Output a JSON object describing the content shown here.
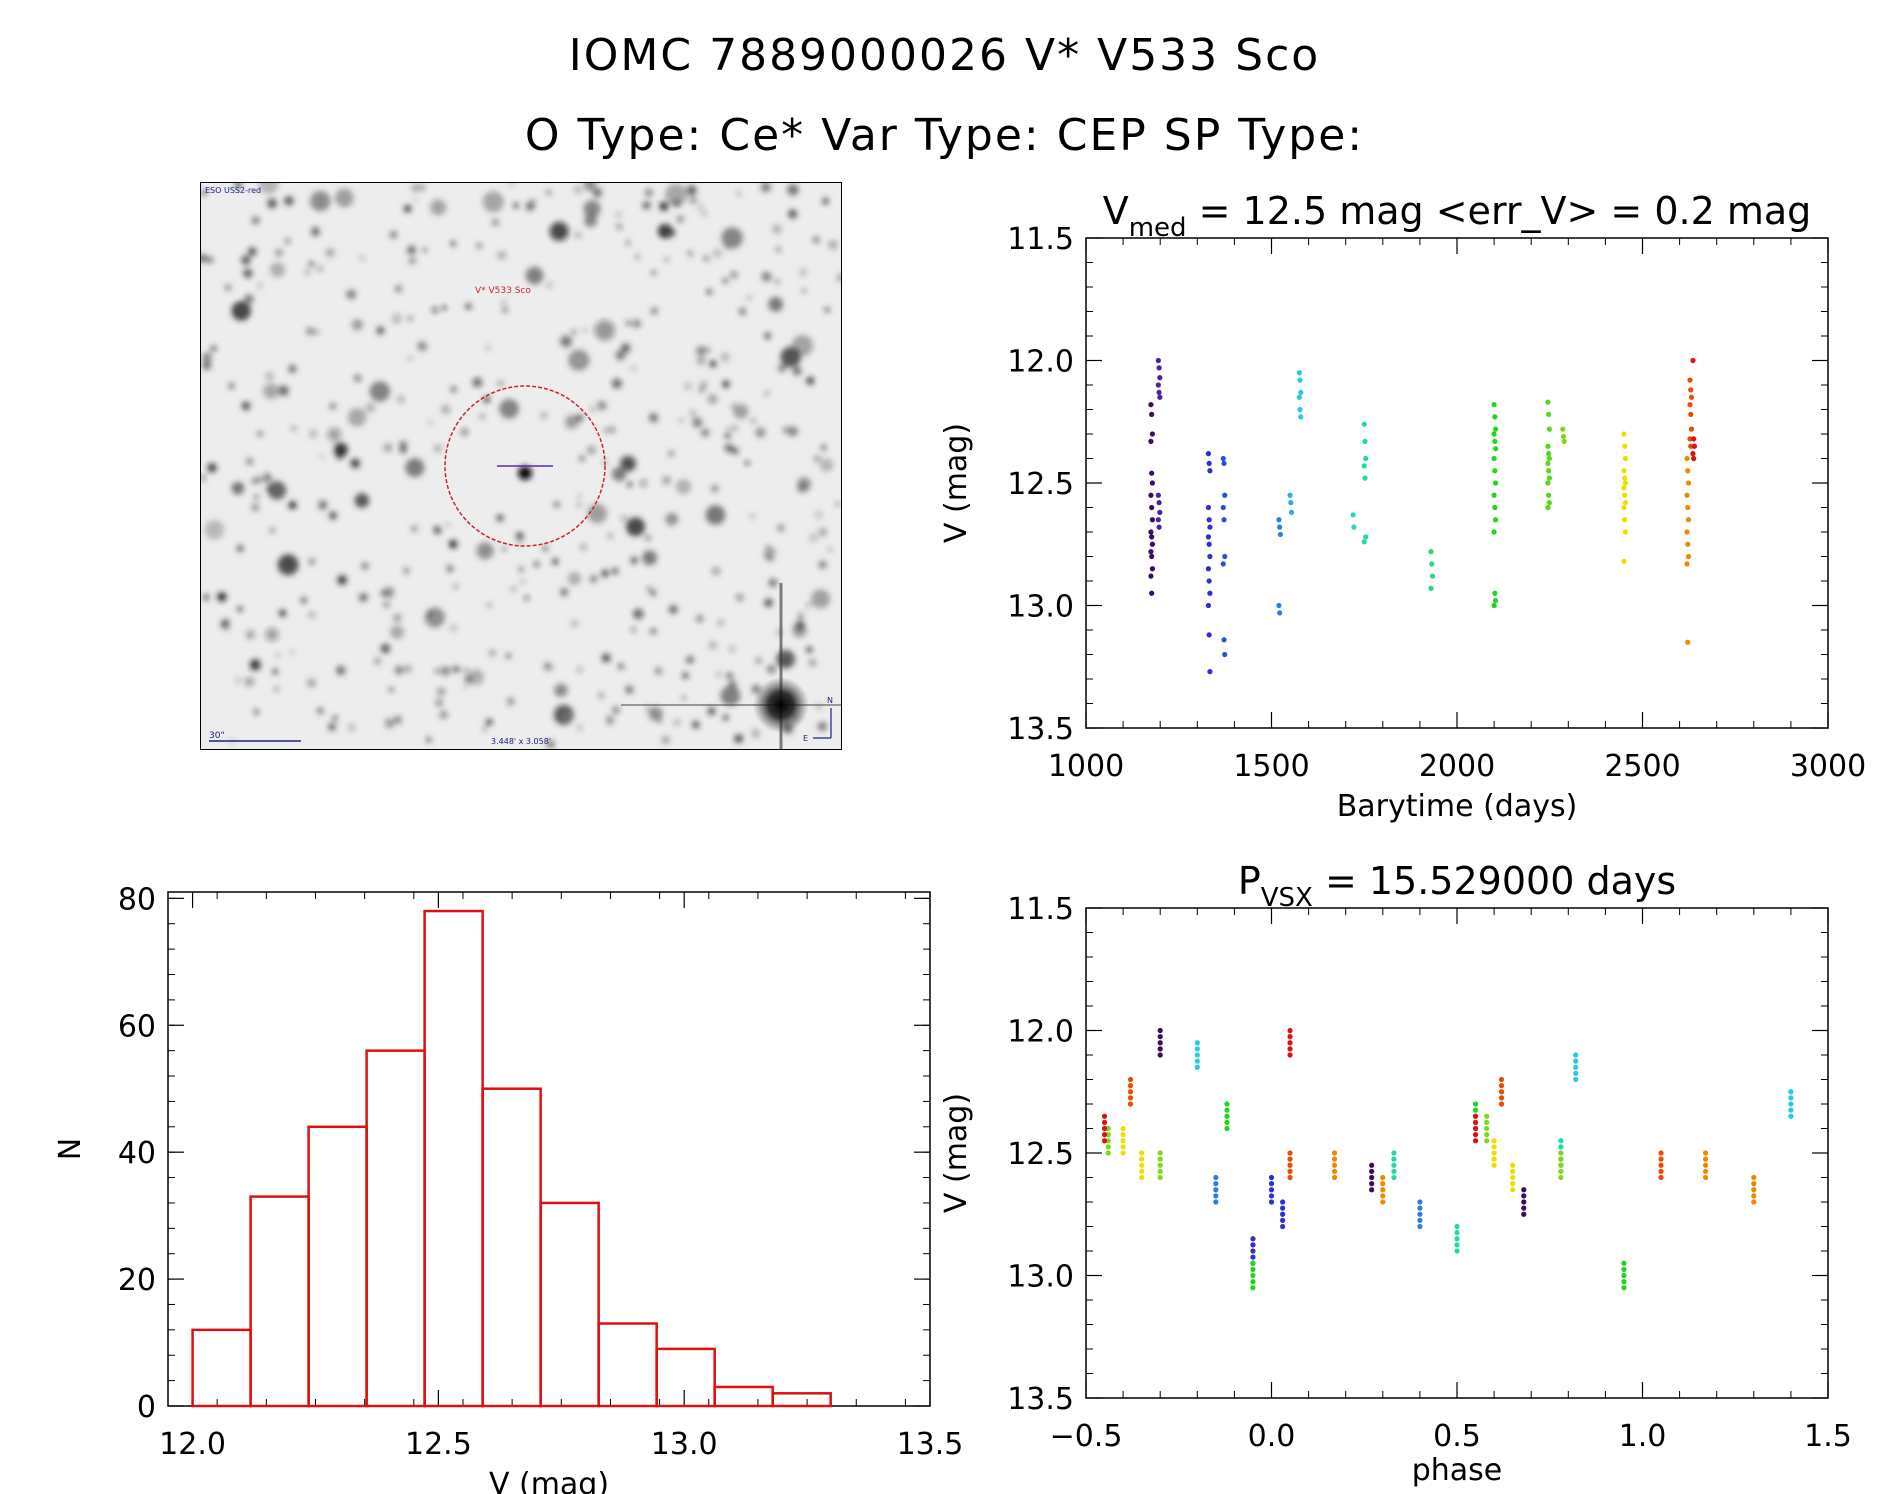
{
  "header": {
    "title_line1": "IOMC 7889000026   V* V533 Sco",
    "title_line2": "O Type: Ce*  Var Type: CEP  SP Type:"
  },
  "image_panel": {
    "survey_label": "ESO USS2-red",
    "target_label": "V* V533 Sco",
    "scale_label": "30\"",
    "fov_label": "3.448' x 3.058'",
    "north_label": "N",
    "east_label": "E"
  },
  "chart_data": [
    {
      "id": "lightcurve",
      "type": "scatter",
      "title_main": "V",
      "title_sub": "med",
      "title_rest": " = 12.5 mag <err_V> = 0.2 mag",
      "xlabel": "Barytime (days)",
      "ylabel": "V (mag)",
      "xlim": [
        1000,
        3000
      ],
      "ylim": [
        13.5,
        11.5
      ],
      "xticks": [
        "1000",
        "1500",
        "2000",
        "2500",
        "3000"
      ],
      "yticks": [
        "11.5",
        "12.0",
        "12.5",
        "13.0",
        "13.5"
      ],
      "groups": [
        {
          "color": "#3a0b5e",
          "x": 1175,
          "y": [
            12.18,
            12.22,
            12.3,
            12.33,
            12.46,
            12.5,
            12.55,
            12.6,
            12.65,
            12.7,
            12.72,
            12.75,
            12.78,
            12.8,
            12.85,
            12.88,
            12.95
          ]
        },
        {
          "color": "#4b1fa8",
          "x": 1195,
          "y": [
            12.0,
            12.03,
            12.07,
            12.1,
            12.13,
            12.15,
            12.55,
            12.58,
            12.62,
            12.65,
            12.68
          ]
        },
        {
          "color": "#2d2ed6",
          "x": 1330,
          "y": [
            12.38,
            12.42,
            12.45,
            12.6,
            12.65,
            12.68,
            12.72,
            12.75,
            12.8,
            12.85,
            12.9,
            12.95,
            13.0,
            13.12,
            13.27
          ]
        },
        {
          "color": "#2d4ee0",
          "x": 1370,
          "y": [
            12.4,
            12.42,
            12.55,
            12.6,
            12.65,
            12.8,
            12.83,
            13.14,
            13.2
          ]
        },
        {
          "color": "#2f7be8",
          "x": 1520,
          "y": [
            12.65,
            12.68,
            12.71,
            13.0,
            13.03
          ]
        },
        {
          "color": "#34a8ee",
          "x": 1550,
          "y": [
            12.55,
            12.58,
            12.62
          ]
        },
        {
          "color": "#28c8e8",
          "x": 1575,
          "y": [
            12.05,
            12.08,
            12.13,
            12.15,
            12.2,
            12.23
          ]
        },
        {
          "color": "#25d8c0",
          "x": 1720,
          "y": [
            12.63,
            12.68
          ]
        },
        {
          "color": "#22d9a6",
          "x": 1750,
          "y": [
            12.26,
            12.33,
            12.4,
            12.43,
            12.48,
            12.72,
            12.74
          ]
        },
        {
          "color": "#26d97a",
          "x": 1930,
          "y": [
            12.78,
            12.83,
            12.88,
            12.93
          ]
        },
        {
          "color": "#1ad81a",
          "x": 2100,
          "y": [
            12.18,
            12.23,
            12.28,
            12.3,
            12.33,
            12.36,
            12.4,
            12.45,
            12.5,
            12.55,
            12.6,
            12.65,
            12.7,
            12.95,
            12.98,
            13.0
          ]
        },
        {
          "color": "#55d81a",
          "x": 2245,
          "y": [
            12.17,
            12.22,
            12.28,
            12.35,
            12.38,
            12.4,
            12.42,
            12.45,
            12.48,
            12.5,
            12.55,
            12.58,
            12.6
          ]
        },
        {
          "color": "#7ed81a",
          "x": 2285,
          "y": [
            12.28,
            12.31,
            12.33
          ]
        },
        {
          "color": "#e8e000",
          "x": 2450,
          "y": [
            12.3,
            12.35,
            12.4,
            12.45,
            12.48,
            12.5,
            12.52,
            12.55,
            12.58,
            12.6,
            12.65,
            12.7,
            12.82
          ]
        },
        {
          "color": "#ee8a00",
          "x": 2620,
          "y": [
            12.4,
            12.45,
            12.5,
            12.55,
            12.6,
            12.65,
            12.7,
            12.75,
            12.8,
            12.83,
            13.15
          ]
        },
        {
          "color": "#ee4a00",
          "x": 2628,
          "y": [
            12.08,
            12.12,
            12.15,
            12.18,
            12.22,
            12.28,
            12.32,
            12.35
          ]
        },
        {
          "color": "#e01010",
          "x": 2636,
          "y": [
            12.0,
            12.32,
            12.35,
            12.38,
            12.4
          ]
        }
      ]
    },
    {
      "id": "histogram",
      "type": "bar",
      "xlabel": "V (mag)",
      "ylabel": "N",
      "xlim": [
        11.95,
        13.5
      ],
      "ylim": [
        0,
        81
      ],
      "xticks": [
        "12.0",
        "12.5",
        "13.0",
        "13.5"
      ],
      "yticks": [
        "0",
        "20",
        "40",
        "60",
        "80"
      ],
      "bin_edges": [
        12.0,
        12.118,
        12.236,
        12.354,
        12.472,
        12.59,
        12.708,
        12.826,
        12.944,
        13.062,
        13.18,
        13.298
      ],
      "values": [
        12,
        33,
        44,
        56,
        78,
        50,
        32,
        13,
        9,
        3,
        2
      ]
    },
    {
      "id": "phased",
      "type": "scatter",
      "title_main": "P",
      "title_sub": "VSX",
      "title_rest": " = 15.529000 days",
      "xlabel": "phase",
      "ylabel": "V (mag)",
      "xlim": [
        -0.5,
        1.5
      ],
      "ylim": [
        13.5,
        11.5
      ],
      "xticks": [
        "−0.5",
        "0.0",
        "0.5",
        "1.0",
        "1.5"
      ],
      "yticks": [
        "11.5",
        "12.0",
        "12.5",
        "13.0",
        "13.5"
      ],
      "groups": [
        {
          "color": "#3a0b5e",
          "phase": [
            -0.3,
            0.27,
            0.68
          ],
          "y": [
            12.0,
            12.55,
            12.65
          ]
        },
        {
          "color": "#2d2ed6",
          "phase": [
            0.0,
            0.03,
            -0.05
          ],
          "y": [
            12.6,
            12.7,
            12.85
          ]
        },
        {
          "color": "#2f7be8",
          "phase": [
            0.4,
            -0.15
          ],
          "y": [
            12.7,
            12.6
          ]
        },
        {
          "color": "#28c8e8",
          "phase": [
            -0.2,
            0.82,
            1.4
          ],
          "y": [
            12.05,
            12.1,
            12.25
          ]
        },
        {
          "color": "#22d9a6",
          "phase": [
            0.33,
            0.5,
            0.78
          ],
          "y": [
            12.5,
            12.8,
            12.45
          ]
        },
        {
          "color": "#1ad81a",
          "phase": [
            -0.05,
            -0.12,
            0.55,
            0.95
          ],
          "y": [
            12.95,
            12.3,
            12.3,
            12.95
          ]
        },
        {
          "color": "#7ed81a",
          "phase": [
            -0.44,
            -0.3,
            0.58,
            0.78
          ],
          "y": [
            12.4,
            12.5,
            12.35,
            12.5
          ]
        },
        {
          "color": "#e8e000",
          "phase": [
            -0.4,
            -0.35,
            0.6,
            0.65
          ],
          "y": [
            12.4,
            12.5,
            12.45,
            12.55
          ]
        },
        {
          "color": "#ee8a00",
          "phase": [
            0.17,
            0.3,
            1.17,
            1.3
          ],
          "y": [
            12.5,
            12.6,
            12.5,
            12.6
          ]
        },
        {
          "color": "#ee4a00",
          "phase": [
            -0.38,
            0.05,
            0.62,
            1.05
          ],
          "y": [
            12.2,
            12.5,
            12.2,
            12.5
          ]
        },
        {
          "color": "#e01010",
          "phase": [
            -0.45,
            0.55,
            0.05
          ],
          "y": [
            12.35,
            12.35,
            12.0
          ]
        }
      ]
    }
  ]
}
